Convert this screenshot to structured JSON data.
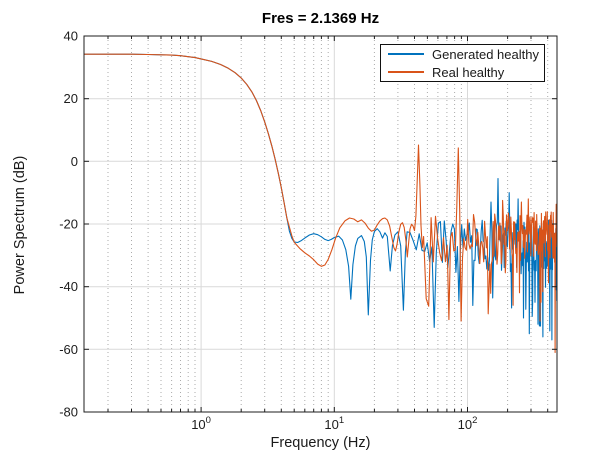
{
  "chart_data": {
    "type": "line",
    "title": "Fres = 2.1369 Hz",
    "xlabel": "Frequency (Hz)",
    "ylabel": "Power Spectrum (dB)",
    "fres_hz": 2.1369,
    "x_scale": "log",
    "xlim": [
      0.132,
      470
    ],
    "ylim": [
      -80,
      40
    ],
    "yticks": [
      -80,
      -60,
      -40,
      -20,
      0,
      20,
      40
    ],
    "ytick_labels": [
      "-80",
      "-60",
      "-40",
      "-20",
      "0",
      "20",
      "40"
    ],
    "xticks": [
      {
        "value": 1,
        "base": "10",
        "exp": "0"
      },
      {
        "value": 10,
        "base": "10",
        "exp": "1"
      },
      {
        "value": 100,
        "base": "10",
        "exp": "2"
      }
    ],
    "x_minor": [
      0.2,
      0.3,
      0.4,
      0.5,
      0.6,
      0.7,
      0.8,
      0.9,
      2,
      3,
      4,
      5,
      6,
      7,
      8,
      9,
      20,
      30,
      40,
      50,
      60,
      70,
      80,
      90,
      200,
      300,
      400
    ],
    "grid": {
      "major_color": "#d9d9d9",
      "minor_color": "#ababab",
      "axis_color": "#1c1c1c",
      "grid_on": true,
      "minor_grid_on": true
    },
    "legend": {
      "position": "northeast"
    },
    "rolloff_points": [
      [
        0.132,
        34.2
      ],
      [
        0.2,
        34.2
      ],
      [
        0.3,
        34.2
      ],
      [
        0.4,
        34.1
      ],
      [
        0.5,
        34.0
      ],
      [
        0.6,
        33.9
      ],
      [
        0.7,
        33.7
      ],
      [
        0.8,
        33.4
      ],
      [
        0.9,
        33.1
      ],
      [
        1.0,
        32.7
      ],
      [
        1.2,
        31.9
      ],
      [
        1.4,
        30.9
      ],
      [
        1.6,
        29.7
      ],
      [
        1.8,
        28.3
      ],
      [
        2.0,
        26.6
      ],
      [
        2.2,
        24.6
      ],
      [
        2.4,
        22.2
      ],
      [
        2.6,
        19.4
      ],
      [
        2.8,
        16.2
      ],
      [
        3.0,
        12.6
      ],
      [
        3.2,
        8.8
      ],
      [
        3.4,
        4.8
      ],
      [
        3.6,
        0.6
      ],
      [
        3.8,
        -3.8
      ],
      [
        4.0,
        -8.4
      ],
      [
        4.2,
        -13.2
      ],
      [
        4.4,
        -18.0
      ]
    ],
    "series": [
      {
        "name": "Generated healthy",
        "color": "#0072BD",
        "points": [
          [
            4.6,
            -22.3
          ],
          [
            4.8,
            -24.6
          ],
          [
            5.0,
            -25.7
          ],
          [
            5.3,
            -25.9
          ],
          [
            5.6,
            -25.4
          ],
          [
            6.0,
            -24.5
          ],
          [
            6.5,
            -23.5
          ],
          [
            7.0,
            -23.1
          ],
          [
            7.5,
            -23.4
          ],
          [
            8.0,
            -24.1
          ],
          [
            8.5,
            -24.9
          ],
          [
            9.0,
            -25.3
          ],
          [
            9.5,
            -24.9
          ],
          [
            10.0,
            -24.3
          ],
          [
            10.8,
            -23.9
          ],
          [
            11.5,
            -25.1
          ],
          [
            12.2,
            -28.2
          ],
          [
            12.8,
            -33.5
          ],
          [
            13.3,
            -44.0
          ],
          [
            13.8,
            -33.0
          ],
          [
            14.4,
            -27.0
          ],
          [
            15.0,
            -24.6
          ],
          [
            16.0,
            -23.7
          ],
          [
            16.8,
            -25.6
          ],
          [
            17.4,
            -30.5
          ],
          [
            18.0,
            -49.0
          ],
          [
            18.7,
            -31.5
          ],
          [
            19.3,
            -25.0
          ],
          [
            20.0,
            -22.4
          ],
          [
            21.0,
            -21.5
          ],
          [
            22.0,
            -22.5
          ],
          [
            23.0,
            -24.5
          ],
          [
            24.0,
            -22.8
          ],
          [
            25.0,
            -24.0
          ],
          [
            26.3,
            -35.0
          ],
          [
            27.3,
            -27.0
          ],
          [
            28.5,
            -23.5
          ],
          [
            30.0,
            -22.5
          ],
          [
            31.5,
            -27.0
          ],
          [
            33.0,
            -47.5
          ],
          [
            34.2,
            -29.0
          ],
          [
            35.2,
            -22.5
          ]
        ],
        "noise": {
          "start": 37,
          "end": 470,
          "step": 2.1369,
          "seed": 20,
          "base": -27,
          "amp": 8.5,
          "dip_prob": 0.14,
          "dip_extra": 26,
          "spike_prob": 0.05,
          "spike_extra": 9,
          "min": -63,
          "max": -13,
          "spikes": [
            [
              57,
              -53
            ],
            [
              67,
              -19
            ],
            [
              78,
              -20
            ],
            [
              110,
              -46
            ],
            [
              150,
              -13
            ],
            [
              170,
              -5.5
            ],
            [
              205,
              -10
            ],
            [
              240,
              -12
            ],
            [
              263,
              -50
            ],
            [
              292,
              -55
            ],
            [
              430,
              -57
            ]
          ]
        }
      },
      {
        "name": "Real healthy",
        "color": "#D95319",
        "points": [
          [
            4.6,
            -21.0
          ],
          [
            4.8,
            -23.8
          ],
          [
            5.0,
            -25.8
          ],
          [
            5.5,
            -27.8
          ],
          [
            6.0,
            -29.2
          ],
          [
            6.5,
            -30.2
          ],
          [
            7.0,
            -31.4
          ],
          [
            7.5,
            -32.8
          ],
          [
            8.0,
            -33.5
          ],
          [
            8.5,
            -33.1
          ],
          [
            9.0,
            -31.3
          ],
          [
            9.6,
            -28.2
          ],
          [
            10.2,
            -24.6
          ],
          [
            11.0,
            -21.2
          ],
          [
            12.0,
            -19.0
          ],
          [
            13.0,
            -18.1
          ],
          [
            14.0,
            -18.4
          ],
          [
            15.0,
            -19.3
          ],
          [
            16.0,
            -18.7
          ],
          [
            17.0,
            -19.7
          ],
          [
            18.0,
            -21.3
          ],
          [
            19.0,
            -22.3
          ],
          [
            20.0,
            -21.9
          ],
          [
            21.0,
            -20.3
          ],
          [
            22.0,
            -19.0
          ],
          [
            23.0,
            -18.3
          ],
          [
            24.0,
            -18.1
          ],
          [
            25.0,
            -18.7
          ],
          [
            26.0,
            -20.6
          ],
          [
            27.0,
            -24.2
          ],
          [
            28.0,
            -27.6
          ],
          [
            28.8,
            -28.6
          ],
          [
            29.6,
            -26.4
          ],
          [
            30.5,
            -22.6
          ],
          [
            31.5,
            -20.1
          ],
          [
            32.5,
            -19.6
          ],
          [
            33.5,
            -21.1
          ],
          [
            34.5,
            -25.2
          ],
          [
            35.3,
            -30.5
          ],
          [
            36.2,
            -25.8
          ],
          [
            37.0,
            -21.6
          ],
          [
            38.0,
            -20.1
          ],
          [
            39.0,
            -20.6
          ],
          [
            40.0,
            -22.1
          ],
          [
            41.0,
            -17.5
          ],
          [
            42.0,
            -5.5
          ],
          [
            42.9,
            5.2
          ],
          [
            43.9,
            -7.5
          ],
          [
            44.8,
            -20.5
          ],
          [
            45.8,
            -27.5
          ],
          [
            46.8,
            -24.0
          ]
        ],
        "noise": {
          "start": 49,
          "end": 470,
          "step": 2.1369,
          "seed": 77,
          "base": -24.5,
          "amp": 8.5,
          "dip_prob": 0.12,
          "dip_extra": 26,
          "spike_prob": 0.05,
          "spike_extra": 9,
          "min": -63,
          "max": -12,
          "spikes": [
            [
              85,
              4.3
            ],
            [
              90,
              -51
            ],
            [
              111,
              -17
            ],
            [
              255,
              -13
            ],
            [
              287,
              -12
            ],
            [
              350,
              -51
            ],
            [
              455,
              -61
            ]
          ]
        }
      }
    ]
  }
}
